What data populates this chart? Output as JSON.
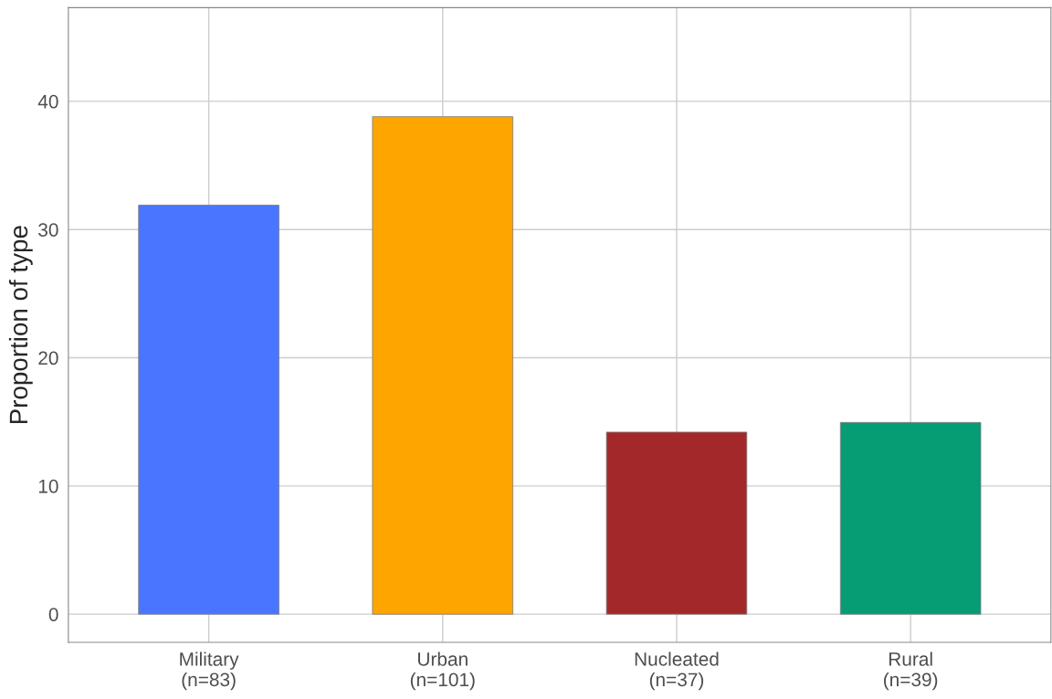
{
  "chart_data": {
    "type": "bar",
    "ylabel": "Proportion of type",
    "categories": [
      "Military\n(n=83)",
      "Urban\n(n=101)",
      "Nucleated\n(n=37)",
      "Rural\n(n=39)"
    ],
    "values": [
      31.9,
      38.8,
      14.2,
      14.95
    ],
    "colors": [
      "#4a76ff",
      "#ffa500",
      "#a3282a",
      "#069c74"
    ],
    "ylim": [
      -2.2,
      47.3
    ],
    "yticks": [
      0,
      10,
      20,
      30,
      40
    ],
    "grid": true
  }
}
